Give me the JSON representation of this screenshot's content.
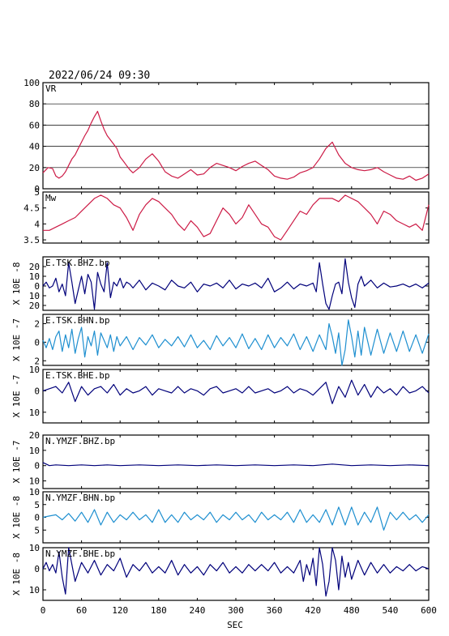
{
  "header": {
    "datetime": "2022/06/24 09:30"
  },
  "colors": {
    "axis": "#000000",
    "vr": "#cc1a45",
    "mw": "#cc1a45",
    "bhz": "#00007a",
    "bhn": "#1e8fd0",
    "bhe": "#00007a"
  },
  "chart_data": {
    "type": "line",
    "x_axis": {
      "label": "SEC",
      "range": [
        0,
        600
      ],
      "ticks": [
        0,
        60,
        120,
        180,
        240,
        300,
        360,
        420,
        480,
        540,
        600
      ]
    },
    "panels": [
      {
        "id": "vr",
        "label": "VR",
        "ylabel": "",
        "ylim": [
          0,
          100
        ],
        "yticks": [
          0,
          20,
          40,
          60,
          80,
          100
        ],
        "grid": true,
        "x": [
          0,
          8,
          15,
          20,
          25,
          30,
          35,
          40,
          45,
          50,
          55,
          60,
          65,
          70,
          75,
          80,
          85,
          90,
          95,
          100,
          105,
          110,
          115,
          120,
          125,
          130,
          135,
          140,
          150,
          160,
          170,
          180,
          190,
          200,
          210,
          220,
          230,
          240,
          250,
          260,
          270,
          280,
          290,
          300,
          310,
          320,
          330,
          340,
          350,
          360,
          370,
          380,
          390,
          400,
          410,
          420,
          430,
          440,
          450,
          460,
          470,
          480,
          490,
          500,
          510,
          520,
          530,
          540,
          550,
          560,
          570,
          580,
          590,
          600
        ],
        "y": [
          15,
          20,
          19,
          12,
          10,
          12,
          16,
          22,
          28,
          32,
          38,
          44,
          50,
          55,
          62,
          68,
          73,
          64,
          56,
          50,
          46,
          42,
          38,
          30,
          26,
          22,
          18,
          15,
          20,
          28,
          33,
          26,
          16,
          12,
          10,
          14,
          18,
          13,
          14,
          20,
          24,
          22,
          20,
          17,
          21,
          24,
          26,
          22,
          18,
          12,
          10,
          9,
          11,
          15,
          17,
          20,
          28,
          38,
          44,
          32,
          24,
          20,
          18,
          17,
          18,
          20,
          16,
          13,
          10,
          9,
          12,
          8,
          10,
          14
        ]
      },
      {
        "id": "mw",
        "label": "Mw",
        "ylabel": "",
        "ylim": [
          3.4,
          5.0
        ],
        "yticks": [
          3.5,
          4.0,
          4.5,
          5.0
        ],
        "grid": false,
        "x": [
          0,
          10,
          20,
          30,
          40,
          50,
          60,
          70,
          80,
          90,
          100,
          110,
          120,
          130,
          140,
          150,
          160,
          170,
          180,
          190,
          200,
          210,
          220,
          230,
          240,
          250,
          260,
          270,
          280,
          290,
          300,
          310,
          320,
          330,
          340,
          350,
          360,
          370,
          380,
          390,
          400,
          410,
          420,
          430,
          440,
          450,
          460,
          470,
          480,
          490,
          500,
          510,
          520,
          530,
          540,
          550,
          560,
          570,
          580,
          590,
          600
        ],
        "y": [
          3.8,
          3.8,
          3.9,
          4.0,
          4.1,
          4.2,
          4.4,
          4.6,
          4.8,
          4.9,
          4.8,
          4.6,
          4.5,
          4.2,
          3.8,
          4.3,
          4.6,
          4.8,
          4.7,
          4.5,
          4.3,
          4.0,
          3.8,
          4.1,
          3.9,
          3.6,
          3.7,
          4.1,
          4.5,
          4.3,
          4.0,
          4.2,
          4.6,
          4.3,
          4.0,
          3.9,
          3.6,
          3.5,
          3.8,
          4.1,
          4.4,
          4.3,
          4.6,
          4.8,
          4.8,
          4.8,
          4.7,
          4.9,
          4.8,
          4.7,
          4.5,
          4.3,
          4.0,
          4.4,
          4.3,
          4.1,
          4.0,
          3.9,
          4.0,
          3.8,
          4.6
        ]
      },
      {
        "id": "tsk-bhz",
        "label": "E.TSK.BHZ.bp",
        "ylabel": "X 10E -8",
        "ylim": [
          -25,
          30
        ],
        "yticks": [
          -20,
          -10,
          0,
          10,
          20
        ],
        "grid": false,
        "x": [
          0,
          5,
          10,
          15,
          20,
          25,
          30,
          35,
          40,
          45,
          50,
          55,
          60,
          65,
          70,
          75,
          80,
          85,
          90,
          95,
          100,
          105,
          110,
          115,
          120,
          125,
          130,
          135,
          140,
          150,
          160,
          170,
          180,
          190,
          200,
          210,
          220,
          230,
          240,
          250,
          260,
          270,
          280,
          290,
          300,
          310,
          320,
          330,
          340,
          350,
          360,
          370,
          380,
          390,
          400,
          410,
          420,
          425,
          430,
          435,
          440,
          445,
          450,
          455,
          460,
          465,
          470,
          475,
          480,
          485,
          490,
          495,
          500,
          510,
          520,
          530,
          540,
          550,
          560,
          570,
          580,
          590,
          600
        ],
        "y": [
          0,
          4,
          -2,
          0,
          8,
          -6,
          2,
          -10,
          24,
          4,
          -18,
          -4,
          10,
          -8,
          12,
          4,
          -24,
          14,
          2,
          -6,
          24,
          -12,
          4,
          0,
          8,
          -2,
          4,
          2,
          -2,
          6,
          -4,
          3,
          0,
          -4,
          6,
          0,
          -2,
          4,
          -6,
          2,
          0,
          3,
          -2,
          6,
          -3,
          2,
          0,
          3,
          -2,
          8,
          -6,
          -2,
          4,
          -3,
          2,
          0,
          3,
          -6,
          24,
          2,
          -18,
          -24,
          -10,
          2,
          4,
          -8,
          28,
          4,
          -12,
          -22,
          2,
          10,
          0,
          6,
          -2,
          3,
          -1,
          0,
          2,
          -1,
          2,
          -2,
          3
        ]
      },
      {
        "id": "tsk-bhn",
        "label": "E.TSK.BHN.bp",
        "ylabel": "X 10E -7",
        "ylim": [
          -2.5,
          3
        ],
        "yticks": [
          -2,
          0,
          2
        ],
        "grid": false,
        "x": [
          0,
          5,
          10,
          15,
          20,
          25,
          30,
          35,
          40,
          45,
          50,
          55,
          60,
          65,
          70,
          75,
          80,
          85,
          90,
          95,
          100,
          105,
          110,
          115,
          120,
          130,
          140,
          150,
          160,
          170,
          180,
          190,
          200,
          210,
          220,
          230,
          240,
          250,
          260,
          270,
          280,
          290,
          300,
          310,
          320,
          330,
          340,
          350,
          360,
          370,
          380,
          390,
          400,
          410,
          420,
          430,
          440,
          445,
          450,
          455,
          460,
          465,
          470,
          475,
          480,
          485,
          490,
          495,
          500,
          510,
          520,
          530,
          540,
          550,
          560,
          570,
          580,
          590,
          600
        ],
        "y": [
          0.2,
          -0.6,
          0.4,
          -0.8,
          0.6,
          1.2,
          -1.0,
          0.8,
          -0.6,
          1.4,
          -1.2,
          0.4,
          1.6,
          -1.6,
          0.6,
          -0.4,
          1.2,
          -1.4,
          1.0,
          0.2,
          -0.6,
          0.8,
          -1.0,
          0.6,
          -0.4,
          0.6,
          -0.8,
          0.5,
          -0.3,
          0.8,
          -0.6,
          0.3,
          -0.4,
          0.6,
          -0.5,
          0.8,
          -0.6,
          0.2,
          -0.8,
          0.7,
          -0.4,
          0.5,
          -0.6,
          0.9,
          -0.7,
          0.4,
          -0.8,
          0.8,
          -0.6,
          0.5,
          -0.4,
          0.9,
          -0.8,
          0.6,
          -1.0,
          0.8,
          -0.8,
          2.0,
          0.6,
          -1.2,
          1.0,
          -2.6,
          -0.8,
          2.4,
          0.6,
          -1.6,
          1.2,
          -1.4,
          1.6,
          -1.4,
          1.4,
          -1.2,
          1.0,
          -1.0,
          1.2,
          -1.0,
          0.8,
          -1.2,
          0.9
        ]
      },
      {
        "id": "tsk-bhe",
        "label": "E.TSK.BHE.bp",
        "ylabel": "X 10E -7",
        "ylim": [
          -15,
          10
        ],
        "yticks": [
          -10,
          0,
          10
        ],
        "grid": false,
        "x": [
          0,
          10,
          20,
          30,
          40,
          50,
          60,
          70,
          80,
          90,
          100,
          110,
          120,
          130,
          140,
          150,
          160,
          170,
          180,
          190,
          200,
          210,
          220,
          230,
          240,
          250,
          260,
          270,
          280,
          290,
          300,
          310,
          320,
          330,
          340,
          350,
          360,
          370,
          380,
          390,
          400,
          410,
          420,
          430,
          440,
          450,
          460,
          470,
          480,
          490,
          500,
          510,
          520,
          530,
          540,
          550,
          560,
          570,
          580,
          590,
          600
        ],
        "y": [
          0,
          1,
          2,
          -1,
          4,
          -5,
          2,
          -2,
          1,
          2,
          -1,
          3,
          -2,
          1,
          -1,
          0,
          2,
          -2,
          1,
          0,
          -1,
          2,
          -1,
          1,
          0,
          -2,
          1,
          2,
          -1,
          0,
          1,
          -1,
          2,
          -1,
          0,
          1,
          -1,
          0,
          2,
          -1,
          1,
          0,
          -2,
          1,
          4,
          -6,
          2,
          -3,
          5,
          -2,
          3,
          -3,
          2,
          -1,
          1,
          -2,
          2,
          -1,
          0,
          2,
          -1
        ]
      },
      {
        "id": "ymzf-bhz",
        "label": "N.YMZF.BHZ.bp",
        "ylabel": "X 10E -7",
        "ylim": [
          -15,
          20
        ],
        "yticks": [
          -10,
          0,
          10,
          20
        ],
        "grid": false,
        "x": [
          0,
          5,
          10,
          20,
          40,
          60,
          80,
          100,
          120,
          150,
          180,
          210,
          240,
          270,
          300,
          330,
          360,
          390,
          420,
          450,
          480,
          510,
          540,
          570,
          600
        ],
        "y": [
          2,
          1,
          0,
          0.5,
          0,
          0.5,
          0,
          0.5,
          0,
          0.5,
          0,
          0.5,
          0,
          0.5,
          0,
          0.5,
          0,
          0.5,
          0,
          1,
          0,
          0.5,
          0,
          0.5,
          0
        ]
      },
      {
        "id": "ymzf-bhn",
        "label": "N.YMZF.BHN.bp",
        "ylabel": "X 10E -8",
        "ylim": [
          -10,
          10
        ],
        "yticks": [
          -5,
          0,
          5,
          10
        ],
        "grid": false,
        "x": [
          0,
          10,
          20,
          30,
          40,
          50,
          60,
          70,
          80,
          90,
          100,
          110,
          120,
          130,
          140,
          150,
          160,
          170,
          180,
          190,
          200,
          210,
          220,
          230,
          240,
          250,
          260,
          270,
          280,
          290,
          300,
          310,
          320,
          330,
          340,
          350,
          360,
          370,
          380,
          390,
          400,
          410,
          420,
          430,
          440,
          450,
          460,
          470,
          480,
          490,
          500,
          510,
          520,
          530,
          540,
          550,
          560,
          570,
          580,
          590,
          600
        ],
        "y": [
          0,
          0.5,
          1,
          -1,
          1.5,
          -1.5,
          2,
          -2,
          3,
          -3,
          2,
          -2,
          1,
          -1,
          2,
          -1,
          1,
          -2,
          3,
          -2,
          1,
          -2,
          2,
          -1,
          1,
          -1,
          2,
          -2,
          1,
          -1,
          2,
          -1,
          1,
          -2,
          2,
          -1,
          1,
          -1,
          2,
          -2,
          3,
          -2,
          1,
          -2,
          3,
          -3,
          4,
          -3,
          4,
          -3,
          2,
          -2,
          4,
          -5,
          2,
          -1,
          2,
          -1,
          1,
          -2,
          1
        ]
      },
      {
        "id": "ymzf-bhe",
        "label": "N.YMZF.BHE.bp",
        "ylabel": "X 10E -8",
        "ylim": [
          -15,
          10
        ],
        "yticks": [
          -10,
          0,
          10
        ],
        "grid": false,
        "x": [
          0,
          5,
          10,
          15,
          20,
          25,
          30,
          35,
          40,
          45,
          50,
          60,
          70,
          80,
          90,
          100,
          110,
          120,
          130,
          140,
          150,
          160,
          170,
          180,
          190,
          200,
          210,
          220,
          230,
          240,
          250,
          260,
          270,
          280,
          290,
          300,
          310,
          320,
          330,
          340,
          350,
          360,
          370,
          380,
          390,
          400,
          405,
          410,
          415,
          420,
          425,
          430,
          435,
          440,
          445,
          450,
          455,
          460,
          465,
          470,
          475,
          480,
          490,
          500,
          510,
          520,
          530,
          540,
          550,
          560,
          570,
          580,
          590,
          600
        ],
        "y": [
          0,
          3,
          -1,
          2,
          -2,
          8,
          -4,
          -12,
          10,
          2,
          -6,
          3,
          -2,
          4,
          -3,
          2,
          -1,
          5,
          -4,
          2,
          -1,
          3,
          -2,
          1,
          -2,
          4,
          -3,
          2,
          -2,
          1,
          -3,
          2,
          -1,
          3,
          -2,
          1,
          -2,
          2,
          -1,
          2,
          -1,
          3,
          -2,
          1,
          -2,
          4,
          -6,
          2,
          -3,
          5,
          -8,
          12,
          2,
          -13,
          -6,
          10,
          4,
          -10,
          6,
          -4,
          3,
          -5,
          4,
          -3,
          3,
          -2,
          2,
          -2,
          1,
          -1,
          2,
          -1,
          1,
          0
        ]
      }
    ]
  }
}
